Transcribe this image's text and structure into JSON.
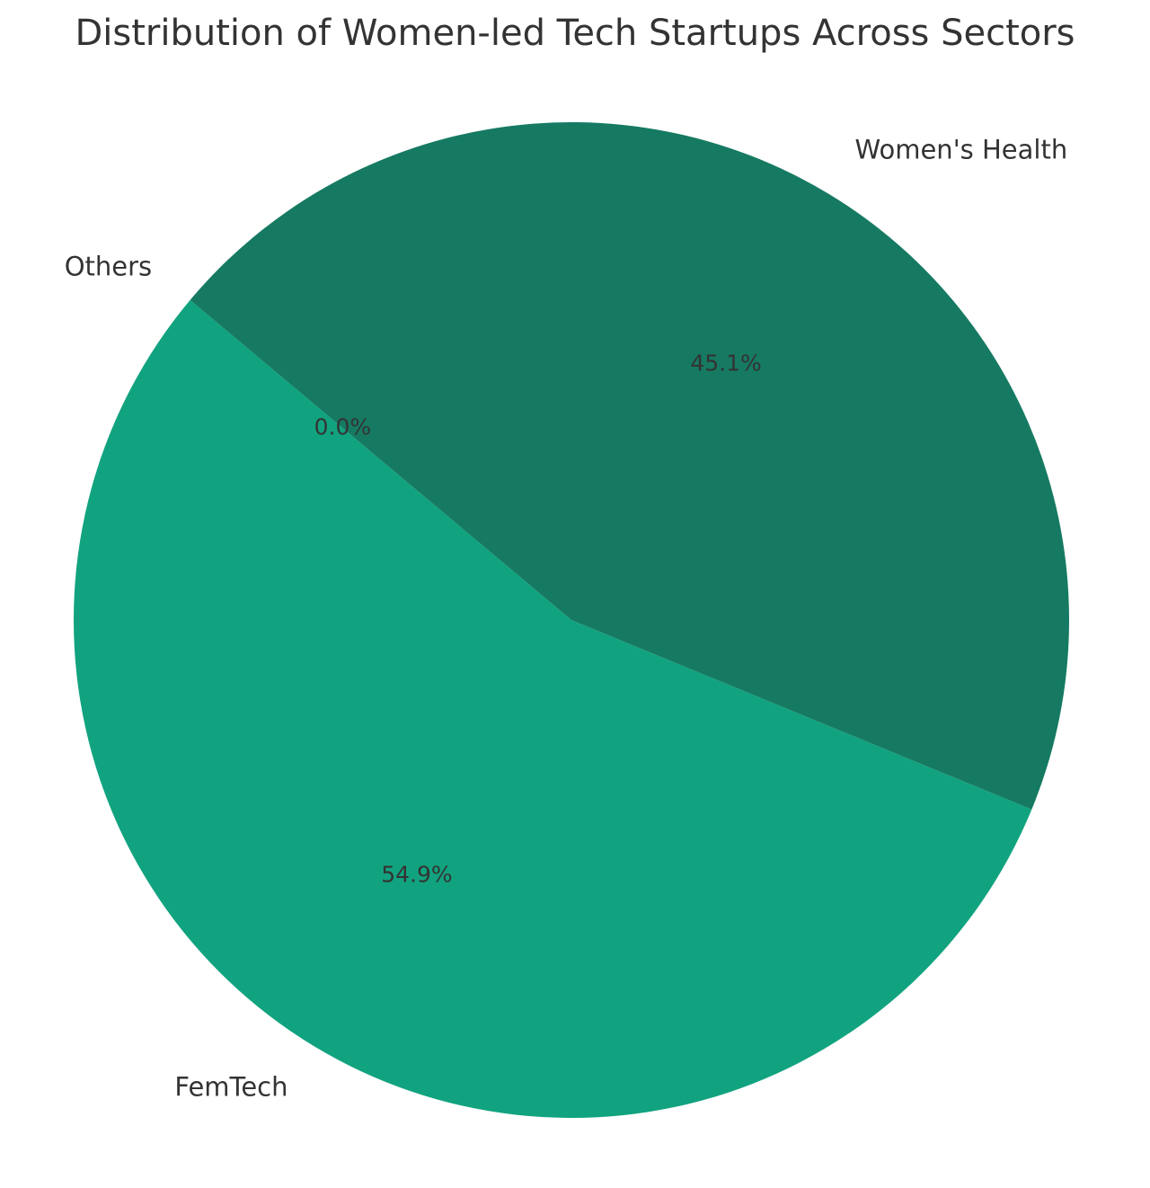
{
  "chart_data": {
    "type": "pie",
    "title": "Distribution of Women-led Tech Startups Across Sectors",
    "start_angle_deg": 140,
    "direction": "counterclockwise",
    "slices": [
      {
        "label": "Others",
        "value": 0.0,
        "pct_label": "0.0%",
        "color": "#0f7a5c"
      },
      {
        "label": "FemTech",
        "value": 54.9,
        "pct_label": "54.9%",
        "color": "#11a37f"
      },
      {
        "label": "Women's Health",
        "value": 45.1,
        "pct_label": "45.1%",
        "color": "#167a62"
      }
    ]
  }
}
